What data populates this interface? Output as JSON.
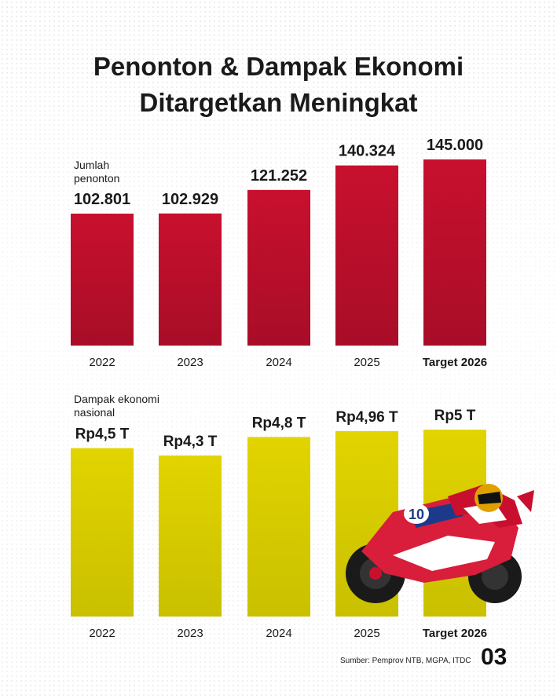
{
  "title": {
    "line1": "Penonton & Dampak Ekonomi",
    "line2": "Ditargetkan Meningkat"
  },
  "chart_data": [
    {
      "type": "bar",
      "series_label": [
        "Jumlah",
        "penonton"
      ],
      "categories": [
        "2022",
        "2023",
        "2024",
        "2025",
        "Target 2026"
      ],
      "values": [
        102801,
        102929,
        121252,
        140324,
        145000
      ],
      "value_labels": [
        "102.801",
        "102.929",
        "121.252",
        "140.324",
        "145.000"
      ],
      "color": "#c8102e",
      "ylim": [
        0,
        145000
      ],
      "grid": false
    },
    {
      "type": "bar",
      "series_label": [
        "Dampak ekonomi",
        "nasional"
      ],
      "categories": [
        "2022",
        "2023",
        "2024",
        "2025",
        "Target 2026"
      ],
      "values": [
        4.5,
        4.3,
        4.8,
        4.96,
        5
      ],
      "value_labels": [
        "Rp4,5 T",
        "Rp4,3 T",
        "Rp4,8 T",
        "Rp4,96 T",
        "Rp5 T"
      ],
      "color": "#e2d400",
      "ylim": [
        0,
        5
      ],
      "grid": false
    }
  ],
  "source": "Sumber: Pemprov NTB, MGPA, ITDC",
  "page_number": "03",
  "image": {
    "icon": "motogp-rider-icon"
  }
}
